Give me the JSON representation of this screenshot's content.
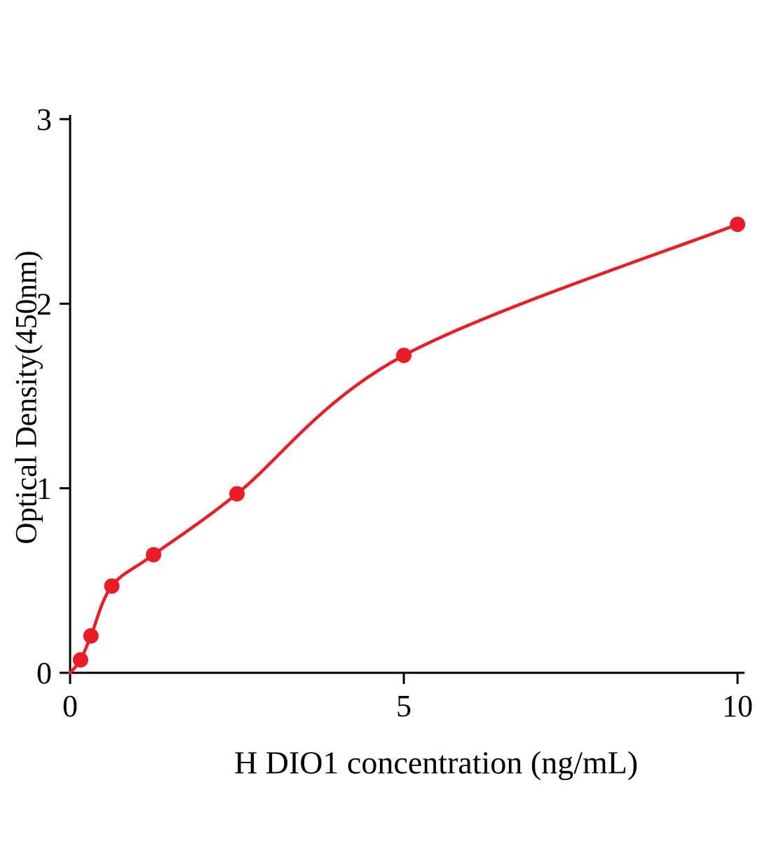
{
  "chart_data": {
    "type": "scatter",
    "title": "",
    "xlabel": "H DIO1 concentration (ng/mL)",
    "ylabel": "Optical Density(450nm)",
    "x": [
      0.156,
      0.312,
      0.625,
      1.25,
      2.5,
      5,
      10
    ],
    "y": [
      0.07,
      0.2,
      0.47,
      0.64,
      0.97,
      1.72,
      2.43
    ],
    "curve_start": [
      0,
      0
    ],
    "xlim": [
      0,
      10
    ],
    "ylim": [
      0,
      3
    ],
    "xticks": [
      0,
      5,
      10
    ],
    "yticks": [
      0,
      1,
      2,
      3
    ],
    "grid": false,
    "point_color": "#ed1c24",
    "curve_color": "#ed1c24",
    "axis_color": "#000000"
  }
}
